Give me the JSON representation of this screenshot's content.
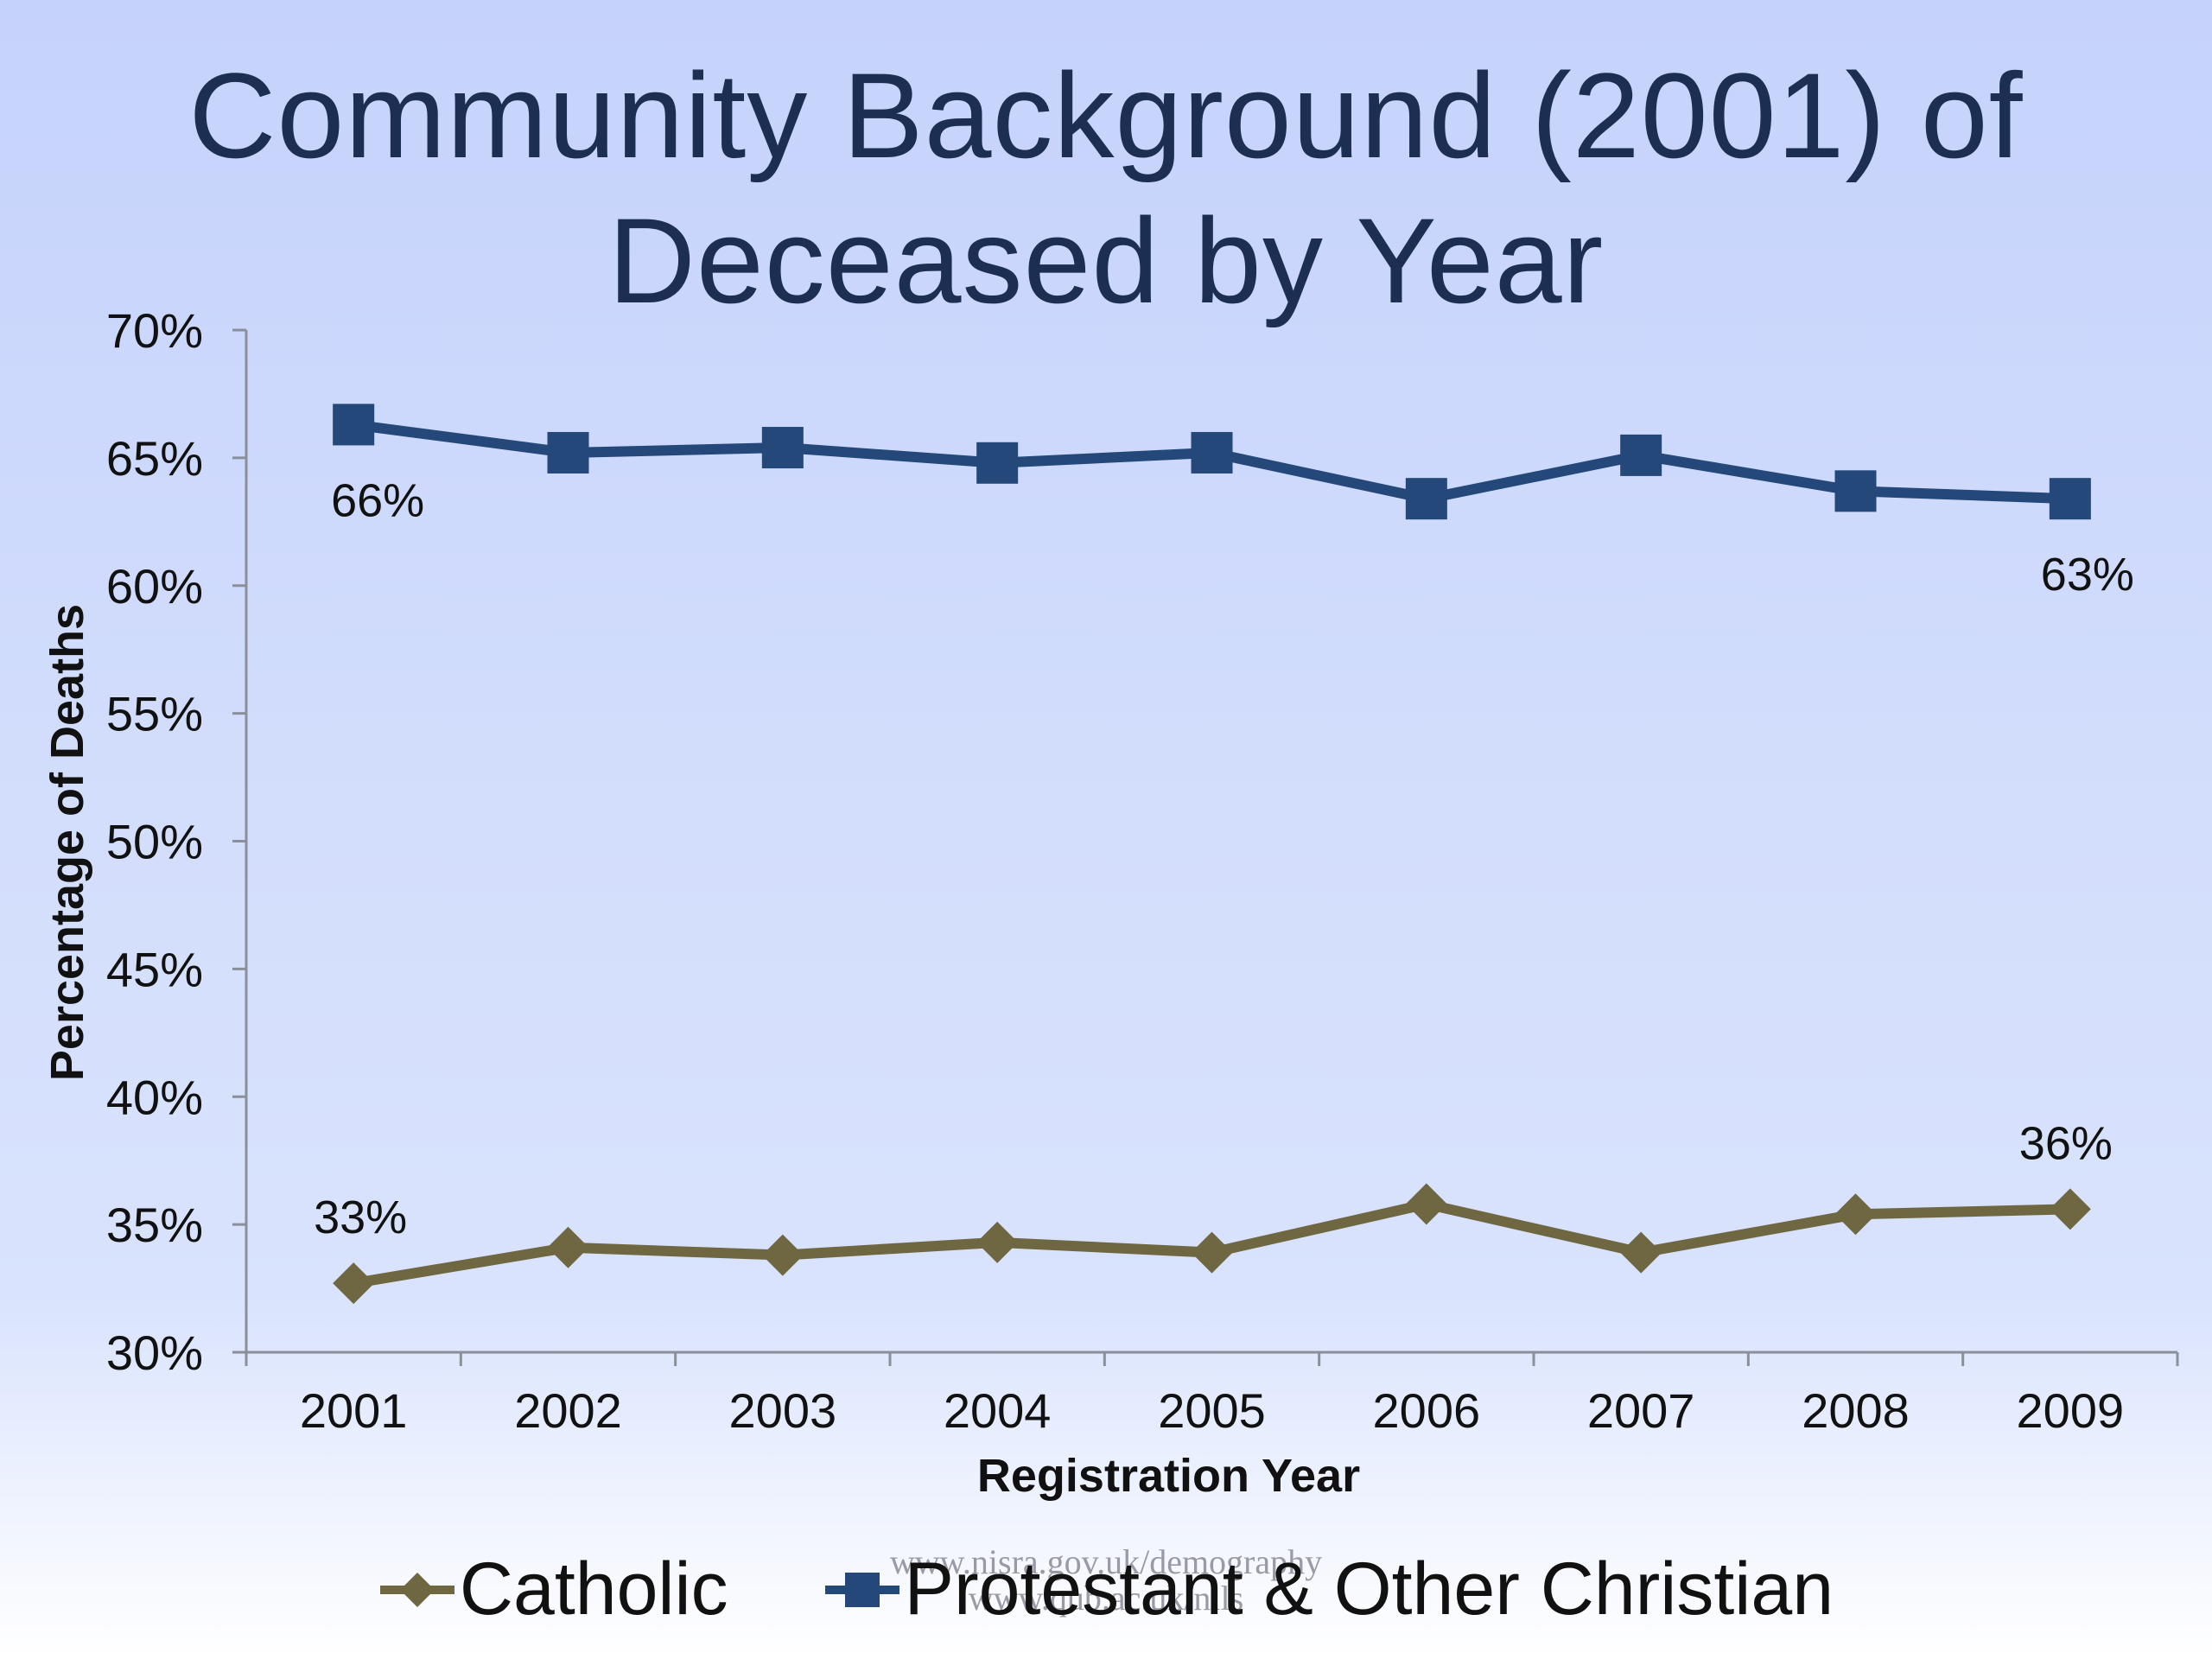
{
  "title": {
    "line1": "Community Background (2001) of",
    "line2": "Deceased by Year"
  },
  "watermark": {
    "line1": "www.nisra.gov.uk/demography",
    "line2": "www.qub.ac.uk/nils"
  },
  "colors": {
    "catholic": "#6e6741",
    "protestant": "#234879",
    "axis": "#8a8f99",
    "text": "#111111",
    "title": "#1c2f52"
  },
  "chart_data": {
    "type": "line",
    "xlabel": "Registration Year",
    "ylabel": "Percentage of Deaths",
    "ylim": [
      30,
      70
    ],
    "yticks": [
      "30%",
      "35%",
      "40%",
      "45%",
      "50%",
      "55%",
      "60%",
      "65%",
      "70%"
    ],
    "categories": [
      "2001",
      "2002",
      "2003",
      "2004",
      "2005",
      "2006",
      "2007",
      "2008",
      "2009"
    ],
    "series": [
      {
        "name": "Catholic",
        "marker": "diamond",
        "values": [
          32.7,
          34.1,
          33.8,
          34.3,
          33.9,
          35.8,
          33.9,
          35.4,
          35.6
        ],
        "labels": [
          {
            "index": 0,
            "text": "33%"
          },
          {
            "index": 8,
            "text": "36%"
          }
        ]
      },
      {
        "name": "Protestant & Other Christian",
        "marker": "square",
        "values": [
          66.3,
          65.2,
          65.4,
          64.8,
          65.2,
          63.4,
          65.1,
          63.7,
          63.4
        ],
        "labels": [
          {
            "index": 0,
            "text": "66%"
          },
          {
            "index": 8,
            "text": "63%"
          }
        ]
      }
    ],
    "grid": false,
    "legend": "bottom"
  }
}
